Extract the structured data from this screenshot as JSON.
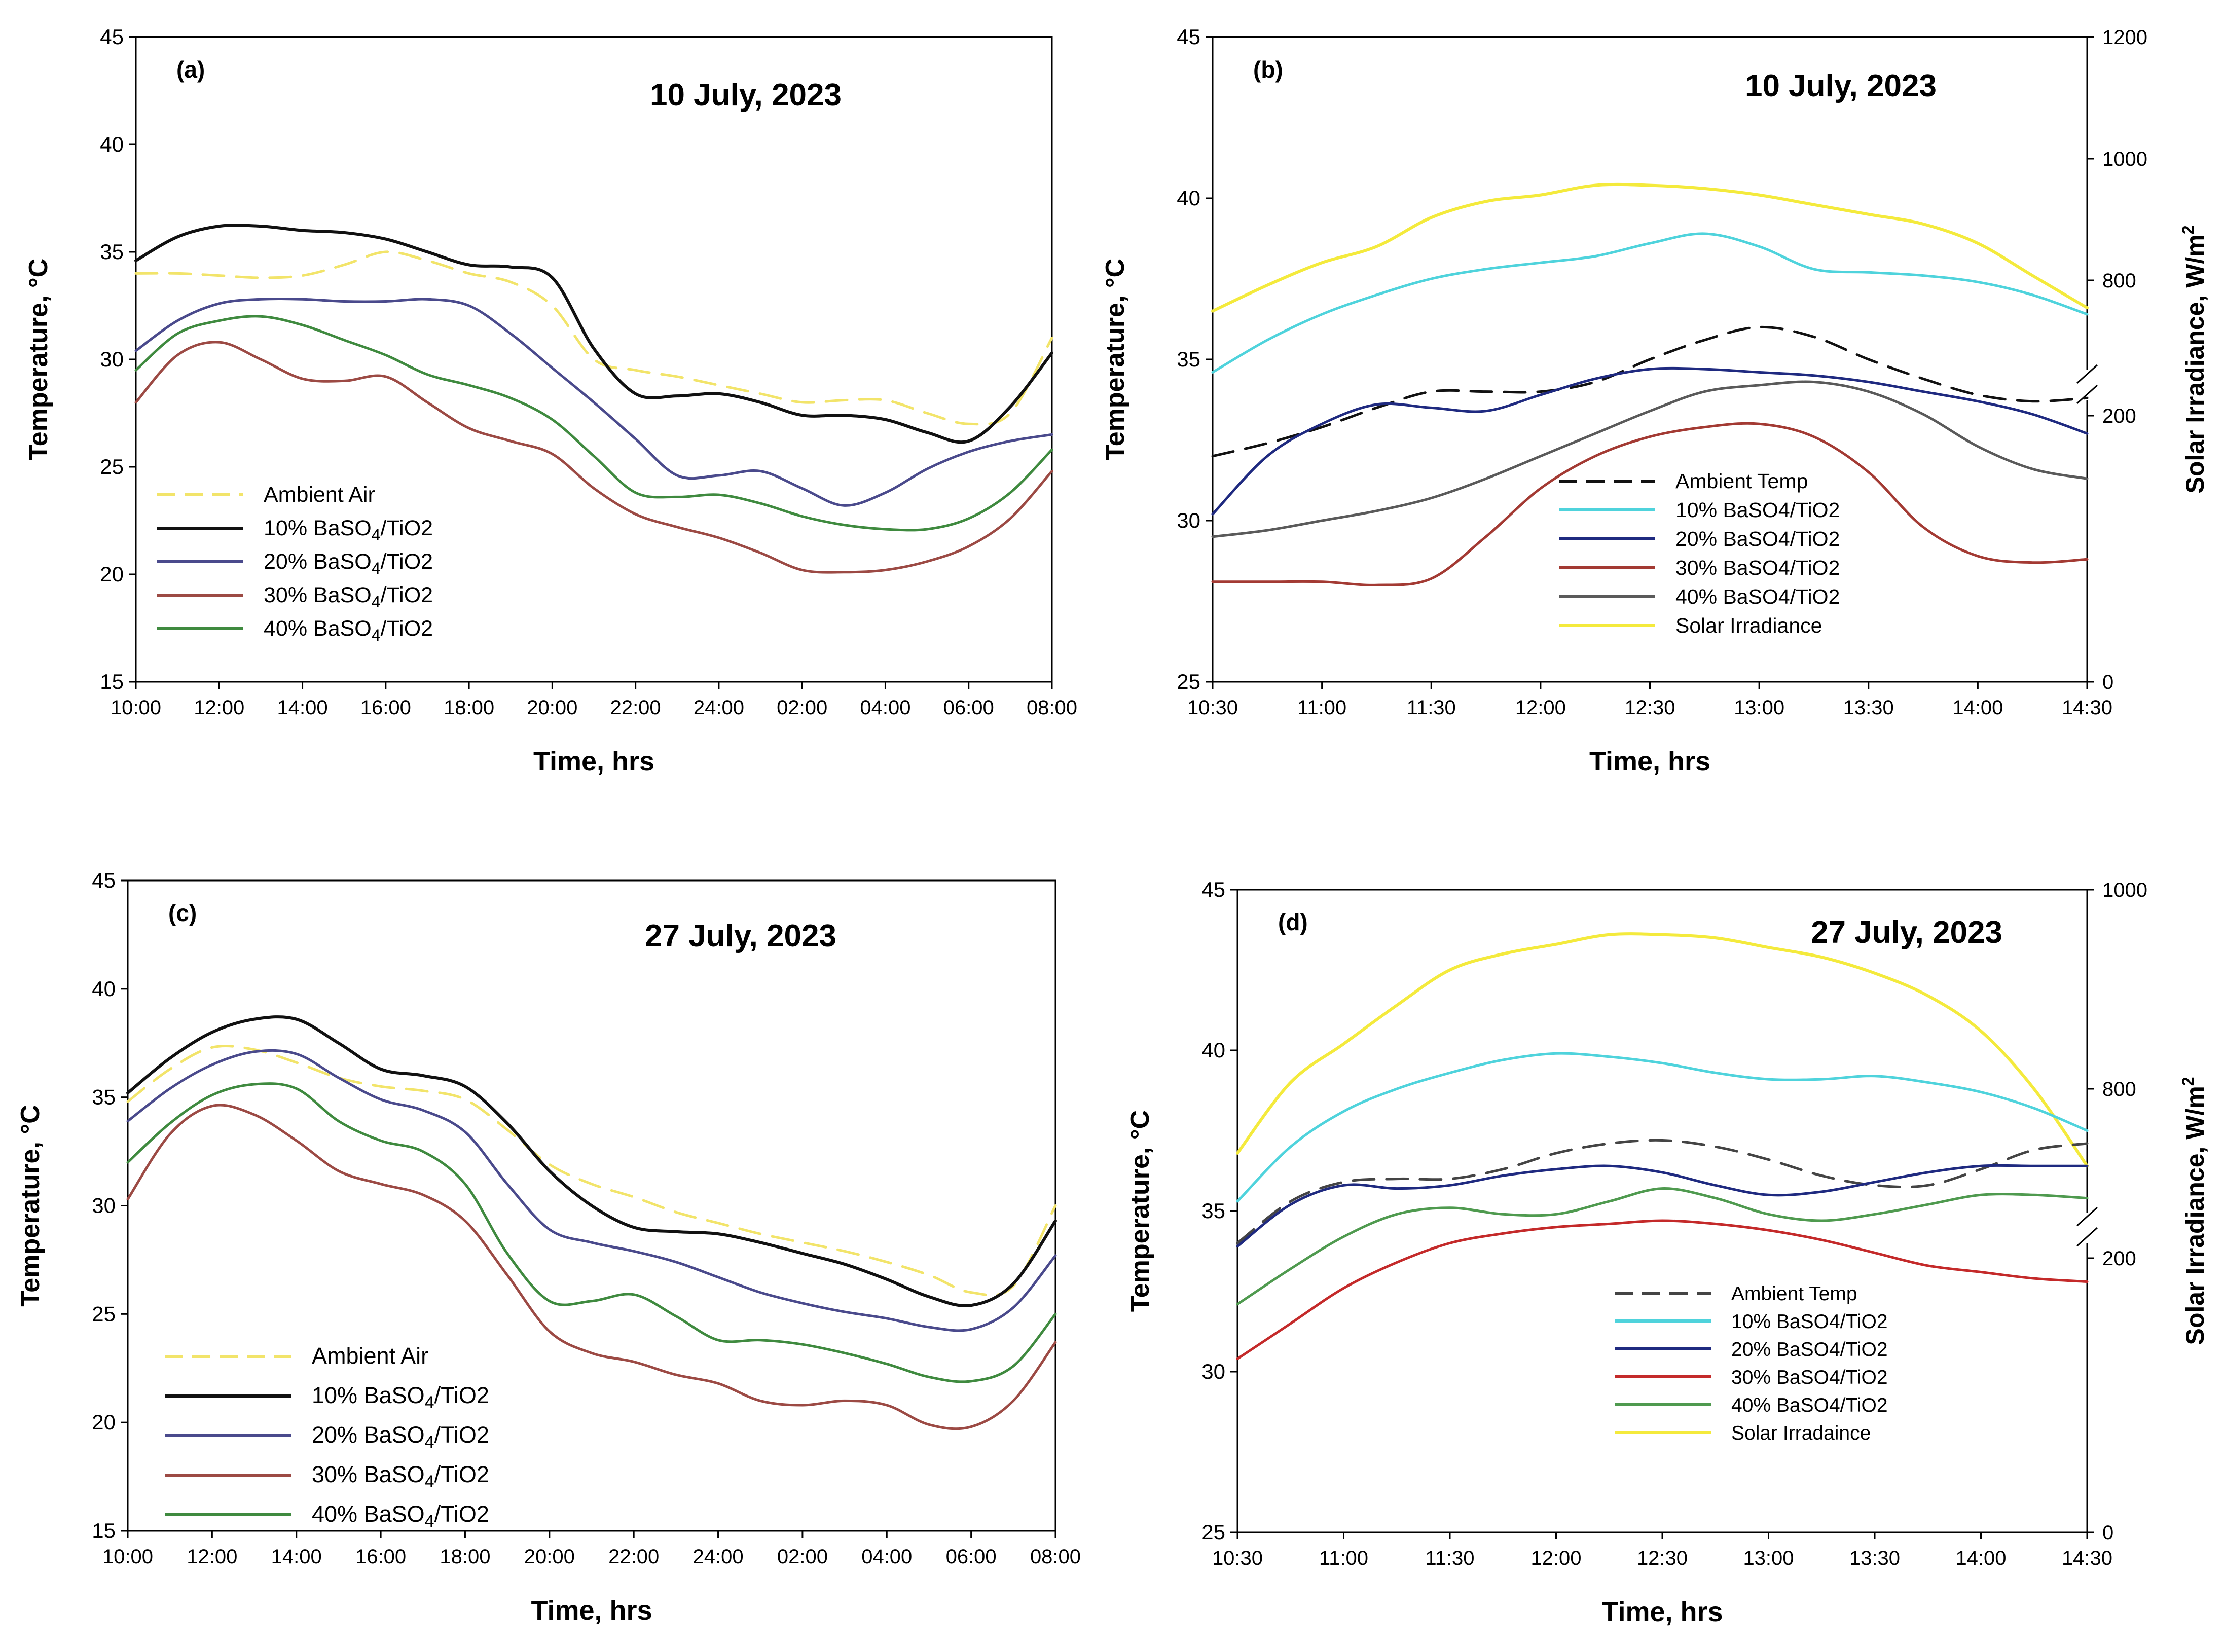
{
  "colors": {
    "ambient": "#f2e46a",
    "solar": "#f4ea3c",
    "p10_night": "#111111",
    "p20_night": "#4a4a8c",
    "p30_night": "#9c4a44",
    "p40_night": "#3f8a3f",
    "p10_day": "#4fd3dc",
    "p20_day": "#1f2a80",
    "p30_day": "#a33a33",
    "p40_day": "#5a5a5a",
    "p40_day_d": "#4f9a4f",
    "p30_day_d": "#c42a2a",
    "amb_day_b": "#111111",
    "amb_day_d": "#444444"
  },
  "chart_data": [
    {
      "id": "a",
      "type": "line",
      "panel_label": "(a)",
      "date_label": "10 July, 2023",
      "xlabel": "Time, hrs",
      "ylabel": "Temperature, °C",
      "ylim": [
        15,
        45
      ],
      "yticks": [
        15,
        20,
        25,
        30,
        35,
        40,
        45
      ],
      "x_tick_labels": [
        "10:00",
        "12:00",
        "14:00",
        "16:00",
        "18:00",
        "20:00",
        "22:00",
        "24:00",
        "02:00",
        "04:00",
        "06:00",
        "08:00"
      ],
      "x_hours": [
        0,
        1,
        2,
        3,
        4,
        5,
        6,
        7,
        8,
        9,
        10,
        11,
        12,
        13,
        14,
        15,
        16,
        17,
        18,
        19,
        20,
        21,
        22
      ],
      "series": [
        {
          "key": "ambient",
          "name": "Ambient Air",
          "legend_main": "Ambient Air",
          "legend_sub": "",
          "legend_tail": "",
          "dashed": true,
          "values": [
            34.0,
            34.0,
            33.9,
            33.8,
            33.9,
            34.4,
            35.0,
            34.6,
            34.0,
            33.6,
            32.5,
            30.0,
            29.5,
            29.2,
            28.8,
            28.4,
            28.0,
            28.1,
            28.1,
            27.5,
            27.0,
            27.5,
            31.0
          ]
        },
        {
          "key": "p10_night",
          "name": "10% BaSO4/TiO2",
          "legend_main": "10% BaSO",
          "legend_sub": "4",
          "legend_tail": "/TiO2",
          "dashed": false,
          "values": [
            34.6,
            35.7,
            36.2,
            36.2,
            36.0,
            35.9,
            35.6,
            35.0,
            34.4,
            34.3,
            33.8,
            30.5,
            28.4,
            28.3,
            28.4,
            28.0,
            27.4,
            27.4,
            27.2,
            26.6,
            26.2,
            27.8,
            30.3
          ]
        },
        {
          "key": "p20_night",
          "name": "20% BaSO4/TiO2",
          "legend_main": "20% BaSO",
          "legend_sub": "4",
          "legend_tail": "/TiO2",
          "dashed": false,
          "values": [
            30.4,
            31.8,
            32.6,
            32.8,
            32.8,
            32.7,
            32.7,
            32.8,
            32.5,
            31.2,
            29.6,
            28.0,
            26.3,
            24.6,
            24.6,
            24.8,
            24.0,
            23.2,
            23.8,
            24.9,
            25.7,
            26.2,
            26.5
          ]
        },
        {
          "key": "p30_night",
          "name": "30% BaSO4/TiO2",
          "legend_main": "30% BaSO",
          "legend_sub": "4",
          "legend_tail": "/TiO2",
          "dashed": false,
          "values": [
            28.0,
            30.2,
            30.8,
            30.0,
            29.1,
            29.0,
            29.2,
            28.0,
            26.8,
            26.2,
            25.6,
            24.0,
            22.8,
            22.2,
            21.7,
            21.0,
            20.2,
            20.1,
            20.2,
            20.6,
            21.3,
            22.6,
            24.8
          ]
        },
        {
          "key": "p40_night",
          "name": "40% BaSO4/TiO2",
          "legend_main": "40% BaSO",
          "legend_sub": "4",
          "legend_tail": "/TiO2",
          "dashed": false,
          "values": [
            29.5,
            31.2,
            31.8,
            32.0,
            31.6,
            30.9,
            30.2,
            29.3,
            28.8,
            28.2,
            27.2,
            25.5,
            23.8,
            23.6,
            23.7,
            23.3,
            22.7,
            22.3,
            22.1,
            22.1,
            22.6,
            23.8,
            25.8
          ]
        }
      ]
    },
    {
      "id": "b",
      "type": "line",
      "panel_label": "(b)",
      "date_label": "10 July, 2023",
      "xlabel": "Time, hrs",
      "ylabel": "Temperature, °C",
      "ylabel_right": "Solar Irradiance, W/m",
      "ylabel_right_sup": "2",
      "ylim": [
        25,
        45
      ],
      "yticks": [
        25,
        30,
        35,
        40,
        45
      ],
      "right_ticks_top": [
        800,
        1000,
        1200
      ],
      "right_ticks_bottom": [
        0,
        200
      ],
      "x_tick_labels": [
        "10:30",
        "11:00",
        "11:30",
        "12:00",
        "12:30",
        "13:00",
        "13:30",
        "14:00",
        "14:30"
      ],
      "x_hours": [
        0,
        0.25,
        0.5,
        0.75,
        1,
        1.25,
        1.5,
        1.75,
        2,
        2.25,
        2.5,
        2.75,
        3,
        3.25,
        3.5,
        3.75,
        4
      ],
      "series": [
        {
          "key": "amb_day_b",
          "name": "Ambient Temp",
          "legend_main": "Ambient Temp",
          "legend_sub": "",
          "legend_tail": "",
          "dashed": true,
          "values": [
            32.0,
            32.4,
            32.9,
            33.5,
            34.0,
            34.0,
            34.0,
            34.3,
            35.0,
            35.6,
            36.0,
            35.7,
            35.0,
            34.4,
            33.9,
            33.7,
            33.8
          ]
        },
        {
          "key": "p10_day",
          "name": "10% BaSO4/TiO2",
          "legend_main": "10% BaSO4/TiO2",
          "legend_sub": "",
          "legend_tail": "",
          "dashed": false,
          "values": [
            34.6,
            35.6,
            36.4,
            37.0,
            37.5,
            37.8,
            38.0,
            38.2,
            38.6,
            38.9,
            38.5,
            37.8,
            37.7,
            37.6,
            37.4,
            37.0,
            36.4
          ]
        },
        {
          "key": "p20_day",
          "name": "20% BaSO4/TiO2",
          "legend_main": "20% BaSO4/TiO2",
          "legend_sub": "",
          "legend_tail": "",
          "dashed": false,
          "values": [
            30.2,
            32.0,
            33.0,
            33.6,
            33.5,
            33.4,
            33.9,
            34.4,
            34.7,
            34.7,
            34.6,
            34.5,
            34.3,
            34.0,
            33.7,
            33.3,
            32.7
          ]
        },
        {
          "key": "p30_day",
          "name": "30% BaSO4/TiO2",
          "legend_main": "30% BaSO4/TiO2",
          "legend_sub": "",
          "legend_tail": "",
          "dashed": false,
          "values": [
            28.1,
            28.1,
            28.1,
            28.0,
            28.2,
            29.5,
            31.0,
            32.0,
            32.6,
            32.9,
            33.0,
            32.6,
            31.5,
            29.8,
            28.9,
            28.7,
            28.8
          ]
        },
        {
          "key": "p40_day",
          "name": "40% BaSO4/TiO2",
          "legend_main": "40% BaSO4/TiO2",
          "legend_sub": "",
          "legend_tail": "",
          "dashed": false,
          "values": [
            29.5,
            29.7,
            30.0,
            30.3,
            30.7,
            31.3,
            32.0,
            32.7,
            33.4,
            34.0,
            34.2,
            34.3,
            34.0,
            33.3,
            32.3,
            31.6,
            31.3
          ]
        },
        {
          "key": "solar",
          "name": "Solar Irradiance",
          "legend_main": "Solar Irradiance",
          "legend_sub": "",
          "legend_tail": "",
          "dashed": false,
          "values": [
            36.5,
            37.3,
            38.0,
            38.5,
            39.4,
            39.9,
            40.1,
            40.4,
            40.4,
            40.3,
            40.1,
            39.8,
            39.5,
            39.2,
            38.6,
            37.6,
            36.6
          ]
        }
      ]
    },
    {
      "id": "c",
      "type": "line",
      "panel_label": "(c)",
      "date_label": "27 July, 2023",
      "xlabel": "Time, hrs",
      "ylabel": "Temperature, °C",
      "ylim": [
        15,
        45
      ],
      "yticks": [
        15,
        20,
        25,
        30,
        35,
        40,
        45
      ],
      "x_tick_labels": [
        "10:00",
        "12:00",
        "14:00",
        "16:00",
        "18:00",
        "20:00",
        "22:00",
        "24:00",
        "02:00",
        "04:00",
        "06:00",
        "08:00"
      ],
      "x_hours": [
        0,
        1,
        2,
        3,
        4,
        5,
        6,
        7,
        8,
        9,
        10,
        11,
        12,
        13,
        14,
        15,
        16,
        17,
        18,
        19,
        20,
        21,
        22
      ],
      "series": [
        {
          "key": "ambient",
          "name": "Ambient Air",
          "legend_main": "Ambient Air",
          "legend_sub": "",
          "legend_tail": "",
          "dashed": true,
          "values": [
            34.8,
            36.3,
            37.3,
            37.2,
            36.6,
            35.9,
            35.5,
            35.3,
            34.9,
            33.5,
            31.9,
            31.0,
            30.4,
            29.7,
            29.2,
            28.7,
            28.3,
            27.9,
            27.4,
            26.8,
            26.0,
            26.3,
            30.0
          ]
        },
        {
          "key": "p10_night",
          "name": "10% BaSO4/TiO2",
          "legend_main": "10% BaSO",
          "legend_sub": "4",
          "legend_tail": "/TiO2",
          "dashed": false,
          "values": [
            35.2,
            36.8,
            38.0,
            38.6,
            38.6,
            37.5,
            36.3,
            36.0,
            35.5,
            33.8,
            31.6,
            30.0,
            29.0,
            28.8,
            28.7,
            28.3,
            27.8,
            27.3,
            26.6,
            25.8,
            25.4,
            26.4,
            29.3
          ]
        },
        {
          "key": "p20_night",
          "name": "20% BaSO4/TiO2",
          "legend_main": "20% BaSO",
          "legend_sub": "4",
          "legend_tail": "/TiO2",
          "dashed": false,
          "values": [
            33.9,
            35.4,
            36.5,
            37.1,
            37.0,
            35.9,
            34.9,
            34.4,
            33.4,
            31.0,
            28.9,
            28.3,
            27.9,
            27.4,
            26.7,
            26.0,
            25.5,
            25.1,
            24.8,
            24.4,
            24.3,
            25.3,
            27.7
          ]
        },
        {
          "key": "p30_night",
          "name": "30% BaSO4/TiO2",
          "legend_main": "30% BaSO",
          "legend_sub": "4",
          "legend_tail": "/TiO2",
          "dashed": false,
          "values": [
            30.3,
            33.3,
            34.6,
            34.2,
            33.0,
            31.6,
            31.0,
            30.5,
            29.3,
            26.8,
            24.2,
            23.2,
            22.8,
            22.2,
            21.8,
            21.0,
            20.8,
            21.0,
            20.8,
            19.9,
            19.8,
            21.0,
            23.7
          ]
        },
        {
          "key": "p40_night",
          "name": "40% BaSO4/TiO2",
          "legend_main": "40% BaSO",
          "legend_sub": "4",
          "legend_tail": "/TiO2",
          "dashed": false,
          "values": [
            32.0,
            33.8,
            35.1,
            35.6,
            35.4,
            33.9,
            33.0,
            32.5,
            31.0,
            27.8,
            25.6,
            25.6,
            25.9,
            24.9,
            23.8,
            23.8,
            23.6,
            23.2,
            22.7,
            22.1,
            21.9,
            22.6,
            25.0
          ]
        }
      ]
    },
    {
      "id": "d",
      "type": "line",
      "panel_label": "(d)",
      "date_label": "27 July, 2023",
      "xlabel": "Time, hrs",
      "ylabel": "Temperature, °C",
      "ylabel_right": "Solar Irradiance, W/m",
      "ylabel_right_sup": "2",
      "ylim": [
        25,
        45
      ],
      "yticks": [
        25,
        30,
        35,
        40,
        45
      ],
      "right_ticks_top": [
        800,
        1000
      ],
      "right_ticks_bottom": [
        0,
        200
      ],
      "x_tick_labels": [
        "10:30",
        "11:00",
        "11:30",
        "12:00",
        "12:30",
        "13:00",
        "13:30",
        "14:00",
        "14:30"
      ],
      "x_hours": [
        0,
        0.25,
        0.5,
        0.75,
        1,
        1.25,
        1.5,
        1.75,
        2,
        2.25,
        2.5,
        2.75,
        3,
        3.25,
        3.5,
        3.75,
        4
      ],
      "series": [
        {
          "key": "amb_day_d",
          "name": "Ambient Temp",
          "legend_main": "Ambient Temp",
          "legend_sub": "",
          "legend_tail": "",
          "dashed": true,
          "values": [
            34.0,
            35.3,
            35.9,
            36.0,
            36.0,
            36.3,
            36.8,
            37.1,
            37.2,
            37.0,
            36.6,
            36.1,
            35.8,
            35.8,
            36.3,
            36.9,
            37.1
          ]
        },
        {
          "key": "p10_day",
          "name": "10% BaSO4/TiO2",
          "legend_main": "10% BaSO4/TiO2",
          "legend_sub": "",
          "legend_tail": "",
          "dashed": false,
          "values": [
            35.3,
            37.0,
            38.1,
            38.8,
            39.3,
            39.7,
            39.9,
            39.8,
            39.6,
            39.3,
            39.1,
            39.1,
            39.2,
            39.0,
            38.7,
            38.2,
            37.5
          ]
        },
        {
          "key": "p20_day",
          "name": "20% BaSO4/TiO2",
          "legend_main": "20% BaSO4/TiO2",
          "legend_sub": "",
          "legend_tail": "",
          "dashed": false,
          "values": [
            33.9,
            35.2,
            35.8,
            35.7,
            35.8,
            36.1,
            36.3,
            36.4,
            36.2,
            35.8,
            35.5,
            35.6,
            35.9,
            36.2,
            36.4,
            36.4,
            36.4
          ]
        },
        {
          "key": "p30_day_d",
          "name": "30% BaSO4/TiO2",
          "legend_main": "30% BaSO4/TiO2",
          "legend_sub": "",
          "legend_tail": "",
          "dashed": false,
          "values": [
            30.4,
            31.5,
            32.6,
            33.4,
            34.0,
            34.3,
            34.5,
            34.6,
            34.7,
            34.6,
            34.4,
            34.1,
            33.7,
            33.3,
            33.1,
            32.9,
            32.8
          ]
        },
        {
          "key": "p40_day_d",
          "name": "40% BaSO4/TiO2",
          "legend_main": "40% BaSO4/TiO2",
          "legend_sub": "",
          "legend_tail": "",
          "dashed": false,
          "values": [
            32.1,
            33.2,
            34.2,
            34.9,
            35.1,
            34.9,
            34.9,
            35.3,
            35.7,
            35.4,
            34.9,
            34.7,
            34.9,
            35.2,
            35.5,
            35.5,
            35.4
          ]
        },
        {
          "key": "solar",
          "name": "Solar Irradaince",
          "legend_main": "Solar Irradaince",
          "legend_sub": "",
          "legend_tail": "",
          "dashed": false,
          "values": [
            36.8,
            39.0,
            40.2,
            41.4,
            42.5,
            43.0,
            43.3,
            43.6,
            43.6,
            43.5,
            43.2,
            42.9,
            42.4,
            41.7,
            40.6,
            38.8,
            36.4
          ]
        }
      ]
    }
  ]
}
